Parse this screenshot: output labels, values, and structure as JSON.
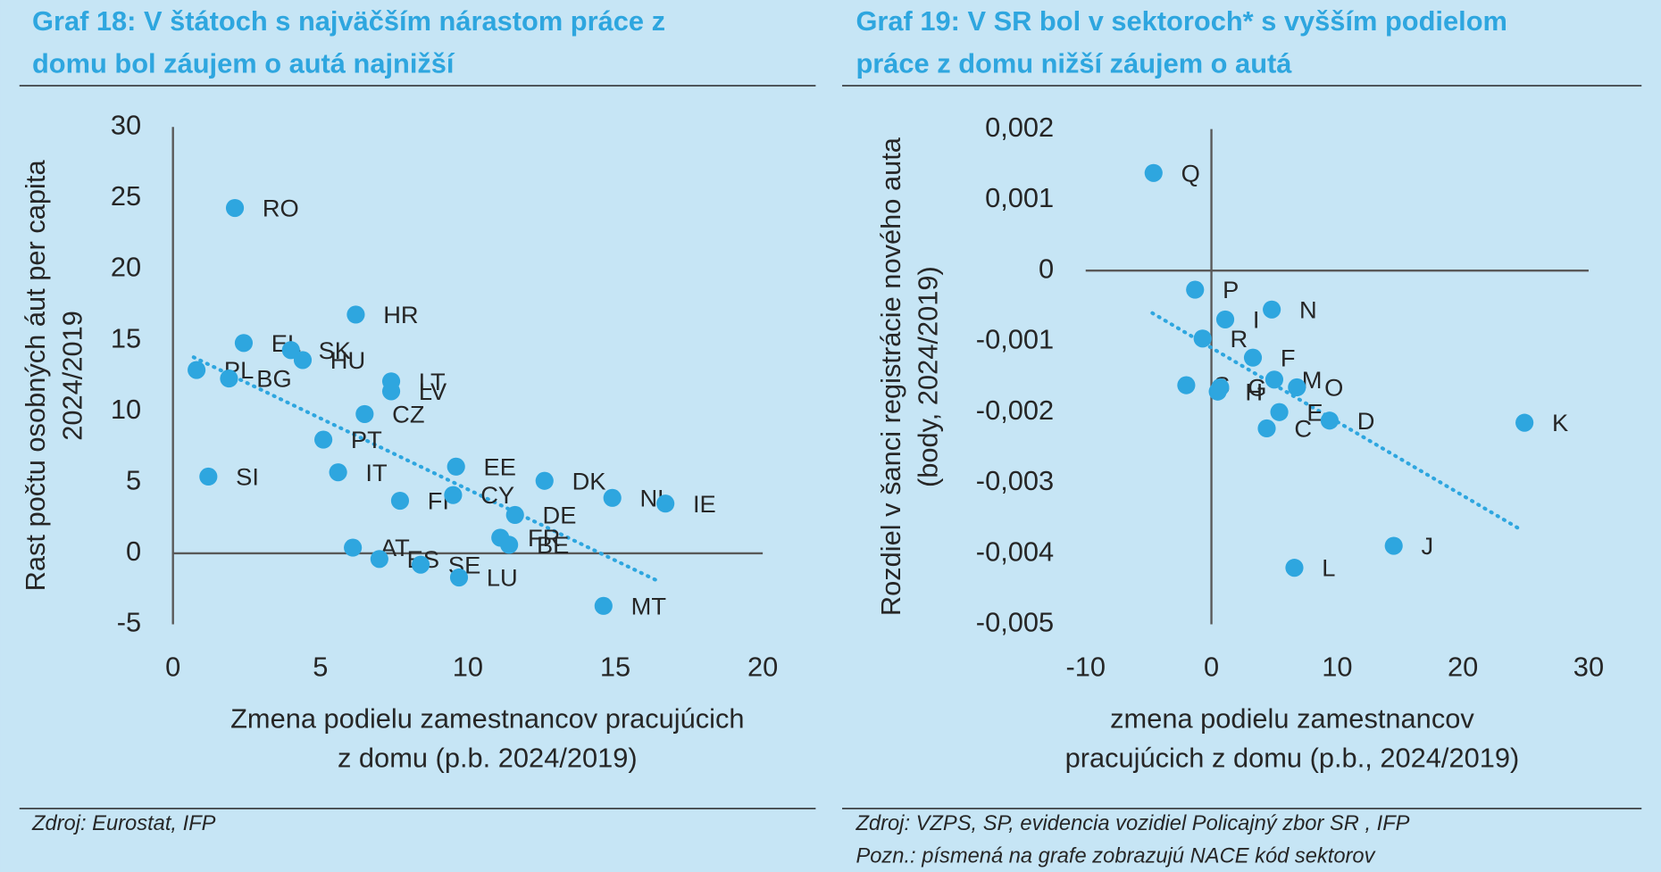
{
  "chart_data": [
    {
      "type": "scatter",
      "title": [
        "Graf 18: V štátoch s najväčším nárastom práce z",
        "domu bol záujem o autá najnižší"
      ],
      "xlabel": [
        "Zmena podielu zamestnancov pracujúcich",
        "z domu (p.b. 2024/2019)"
      ],
      "ylabel": [
        "Rast počtu osobných áut per capita",
        "2024/2019"
      ],
      "xlim": [
        0,
        20
      ],
      "xticks": [
        0,
        5,
        10,
        15,
        20
      ],
      "ylim": [
        -5,
        30
      ],
      "yticks": [
        -5,
        0,
        5,
        10,
        15,
        20,
        25,
        30
      ],
      "series": [
        {
          "color": "#2ea6df",
          "labels": [
            "RO",
            "HR",
            "EL",
            "SK",
            "HU",
            "PL",
            "BG",
            "LT",
            "LV",
            "CZ",
            "PT",
            "IT",
            "EE",
            "SI",
            "DK",
            "FI",
            "CY",
            "NL",
            "IE",
            "DE",
            "FR",
            "BE",
            "AT",
            "ES",
            "SE",
            "LU",
            "MT"
          ],
          "x": [
            2.1,
            6.2,
            2.4,
            4.0,
            4.4,
            0.8,
            1.9,
            7.4,
            7.4,
            6.5,
            5.1,
            5.6,
            9.6,
            1.2,
            12.6,
            7.7,
            9.5,
            14.9,
            16.7,
            11.6,
            11.1,
            11.4,
            6.1,
            7.0,
            8.4,
            9.7,
            14.6
          ],
          "values": [
            24.3,
            16.8,
            14.8,
            14.3,
            13.6,
            12.9,
            12.3,
            12.1,
            11.4,
            9.8,
            8.0,
            5.7,
            6.1,
            5.4,
            5.1,
            3.7,
            4.1,
            3.9,
            3.5,
            2.7,
            1.1,
            0.6,
            0.4,
            -0.4,
            -0.8,
            -1.7,
            -3.7
          ]
        }
      ],
      "trendline": {
        "x": [
          0.7,
          16.4
        ],
        "y": [
          13.8,
          -1.9
        ]
      },
      "source": "Zdroj: Eurostat, IFP"
    },
    {
      "type": "scatter",
      "title": [
        "Graf 19: V SR bol v sektoroch* s vyšším podielom",
        "práce z domu nižší záujem o autá"
      ],
      "xlabel": [
        "zmena podielu zamestnancov",
        "pracujúcich z domu (p.b., 2024/2019)"
      ],
      "ylabel": [
        "Rozdiel v šanci registrácie nového auta",
        "(body, 2024/2019)"
      ],
      "xlim": [
        -10,
        30
      ],
      "xticks": [
        -10,
        0,
        10,
        20,
        30
      ],
      "ylim": [
        -0.005,
        0.002
      ],
      "yticks": [
        {
          "value": -0.005,
          "label": "-0,005"
        },
        {
          "value": -0.004,
          "label": "-0,004"
        },
        {
          "value": -0.003,
          "label": "-0,003"
        },
        {
          "value": -0.002,
          "label": "-0,002"
        },
        {
          "value": -0.001,
          "label": "-0,001"
        },
        0,
        {
          "value": 0.001,
          "label": "0,001"
        },
        {
          "value": 0.002,
          "label": "0,002"
        }
      ],
      "series": [
        {
          "color": "#2ea6df",
          "labels": [
            "Q",
            "P",
            "N",
            "I",
            "R",
            "F",
            "S",
            "G",
            "H",
            "M",
            "O",
            "E",
            "D",
            "C",
            "K",
            "J",
            "L"
          ],
          "x": [
            -4.6,
            -1.3,
            4.8,
            1.1,
            -0.7,
            3.3,
            -2.0,
            0.7,
            0.5,
            5.0,
            6.8,
            5.4,
            9.4,
            4.4,
            24.9,
            14.5,
            6.6
          ],
          "values": [
            0.00138,
            -0.00027,
            -0.00055,
            -0.00069,
            -0.00096,
            -0.00123,
            -0.00162,
            -0.00165,
            -0.00171,
            -0.00154,
            -0.00165,
            -0.002,
            -0.00212,
            -0.00223,
            -0.00215,
            -0.00389,
            -0.0042
          ]
        }
      ],
      "trendline": {
        "x": [
          -4.7,
          24.5
        ],
        "y": [
          -0.0006,
          -0.00365
        ]
      },
      "source": "Zdroj: VZPS, SP, evidencia vozidiel Policajný zbor SR , IFP",
      "note": "Pozn.: písmená na grafe zobrazujú NACE kód sektorov"
    }
  ]
}
